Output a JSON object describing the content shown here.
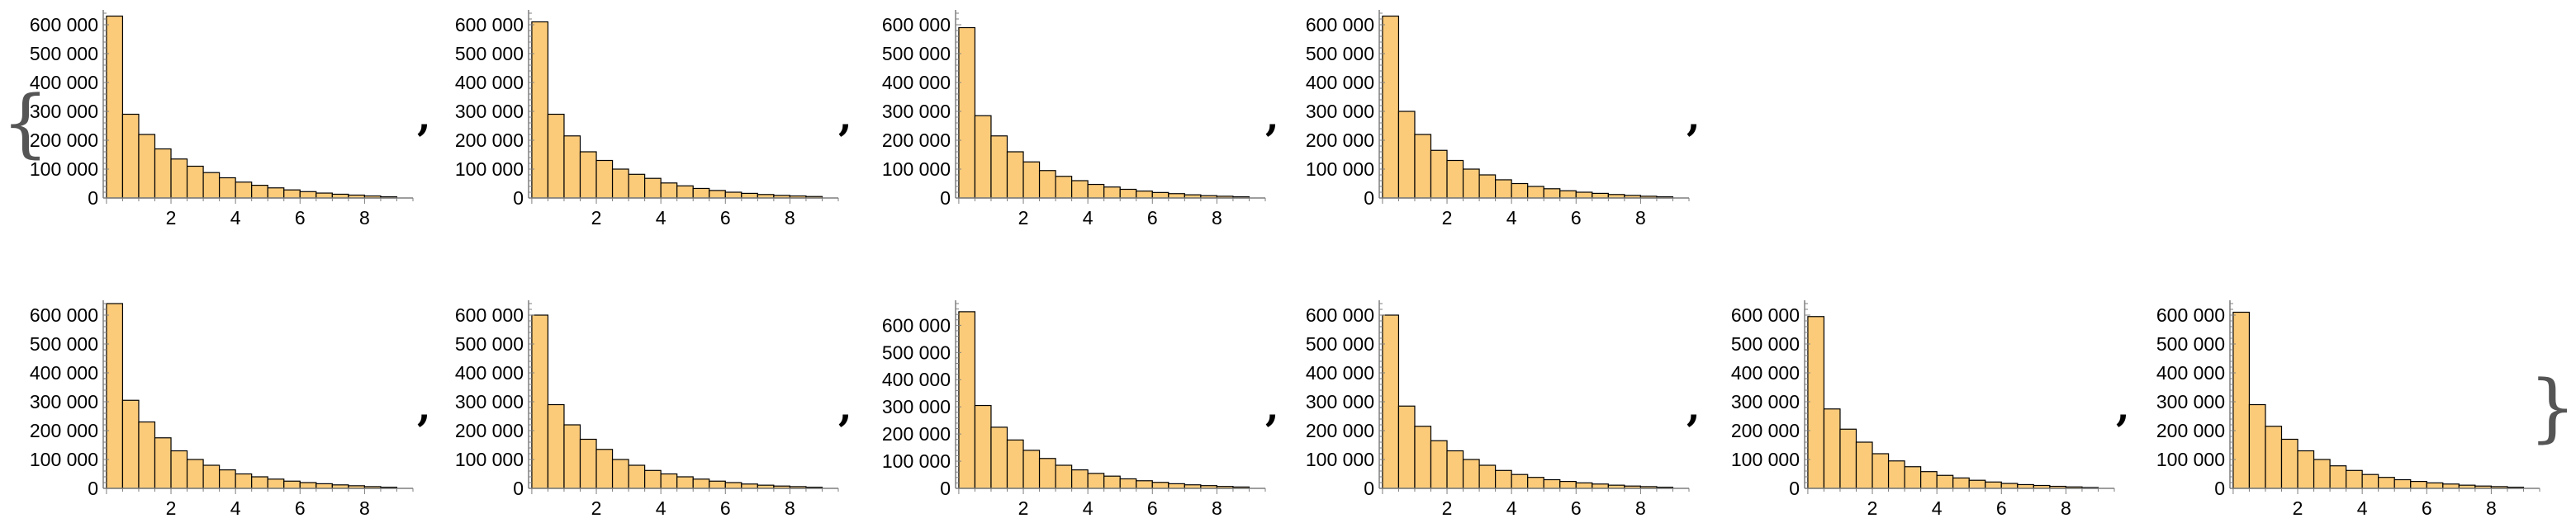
{
  "list_brackets": {
    "open": "{",
    "close": "}",
    "separator": ","
  },
  "style": {
    "bar_fill": "#FBCB7A",
    "bar_stroke": "#000000",
    "axis_color": "#7F7F7F",
    "text_color": "#000000"
  },
  "chart_data": [
    {
      "type": "bar",
      "bin_width": 0.5,
      "x_ticks": [
        2,
        4,
        6,
        8
      ],
      "x_tick_labels": [
        "2",
        "4",
        "6",
        "8"
      ],
      "y_ticks": [
        0,
        100000,
        200000,
        300000,
        400000,
        500000,
        600000
      ],
      "y_tick_labels": [
        "0",
        "100 000",
        "200 000",
        "300 000",
        "400 000",
        "500 000",
        "600 000"
      ],
      "ylim": [
        0,
        640000
      ],
      "xlim": [
        -0.1,
        9.5
      ],
      "values": [
        630000,
        290000,
        220000,
        170000,
        135000,
        110000,
        88000,
        70000,
        55000,
        44000,
        35000,
        28000,
        22000,
        17000,
        13000,
        10000,
        7000,
        4000
      ]
    },
    {
      "type": "bar",
      "bin_width": 0.5,
      "x_ticks": [
        2,
        4,
        6,
        8
      ],
      "x_tick_labels": [
        "2",
        "4",
        "6",
        "8"
      ],
      "y_ticks": [
        0,
        100000,
        200000,
        300000,
        400000,
        500000,
        600000
      ],
      "y_tick_labels": [
        "0",
        "100 000",
        "200 000",
        "300 000",
        "400 000",
        "500 000",
        "600 000"
      ],
      "ylim": [
        0,
        640000
      ],
      "xlim": [
        -0.1,
        9.5
      ],
      "values": [
        610000,
        290000,
        215000,
        160000,
        130000,
        100000,
        82000,
        68000,
        52000,
        42000,
        33000,
        26000,
        20000,
        16000,
        12000,
        9000,
        7000,
        5000
      ]
    },
    {
      "type": "bar",
      "bin_width": 0.5,
      "x_ticks": [
        2,
        4,
        6,
        8
      ],
      "x_tick_labels": [
        "2",
        "4",
        "6",
        "8"
      ],
      "y_ticks": [
        0,
        100000,
        200000,
        300000,
        400000,
        500000,
        600000
      ],
      "y_tick_labels": [
        "0",
        "100 000",
        "200 000",
        "300 000",
        "400 000",
        "500 000",
        "600 000"
      ],
      "ylim": [
        0,
        640000
      ],
      "xlim": [
        -0.1,
        9.5
      ],
      "values": [
        590000,
        285000,
        215000,
        160000,
        125000,
        95000,
        75000,
        60000,
        47000,
        38000,
        30000,
        24000,
        19000,
        15000,
        11000,
        8000,
        6000,
        4000
      ]
    },
    {
      "type": "bar",
      "bin_width": 0.5,
      "x_ticks": [
        2,
        4,
        6,
        8
      ],
      "x_tick_labels": [
        "2",
        "4",
        "6",
        "8"
      ],
      "y_ticks": [
        0,
        100000,
        200000,
        300000,
        400000,
        500000,
        600000
      ],
      "y_tick_labels": [
        "0",
        "100 000",
        "200 000",
        "300 000",
        "400 000",
        "500 000",
        "600 000"
      ],
      "ylim": [
        0,
        640000
      ],
      "xlim": [
        -0.1,
        9.5
      ],
      "values": [
        630000,
        300000,
        220000,
        165000,
        130000,
        100000,
        80000,
        63000,
        50000,
        40000,
        32000,
        25000,
        20000,
        16000,
        12000,
        9000,
        6000,
        4000
      ]
    },
    {
      "type": "bar",
      "bin_width": 0.5,
      "x_ticks": [
        2,
        4,
        6,
        8
      ],
      "x_tick_labels": [
        "2",
        "4",
        "6",
        "8"
      ],
      "y_ticks": [
        0,
        100000,
        200000,
        300000,
        400000,
        500000,
        600000
      ],
      "y_tick_labels": [
        "0",
        "100 000",
        "200 000",
        "300 000",
        "400 000",
        "500 000",
        "600 000"
      ],
      "ylim": [
        0,
        640000
      ],
      "xlim": [
        -0.1,
        9.5
      ],
      "values": [
        640000,
        305000,
        230000,
        175000,
        130000,
        100000,
        80000,
        64000,
        50000,
        40000,
        32000,
        25000,
        20000,
        16000,
        12000,
        9000,
        6000,
        4000
      ]
    },
    {
      "type": "bar",
      "bin_width": 0.5,
      "x_ticks": [
        2,
        4,
        6,
        8
      ],
      "x_tick_labels": [
        "2",
        "4",
        "6",
        "8"
      ],
      "y_ticks": [
        0,
        100000,
        200000,
        300000,
        400000,
        500000,
        600000
      ],
      "y_tick_labels": [
        "0",
        "100 000",
        "200 000",
        "300 000",
        "400 000",
        "500 000",
        "600 000"
      ],
      "ylim": [
        0,
        640000
      ],
      "xlim": [
        -0.1,
        9.5
      ],
      "values": [
        600000,
        290000,
        220000,
        170000,
        135000,
        100000,
        80000,
        62000,
        50000,
        40000,
        32000,
        25000,
        20000,
        15000,
        11000,
        8000,
        6000,
        4000
      ]
    },
    {
      "type": "bar",
      "bin_width": 0.5,
      "x_ticks": [
        2,
        4,
        6,
        8
      ],
      "x_tick_labels": [
        "2",
        "4",
        "6",
        "8"
      ],
      "y_ticks": [
        0,
        100000,
        200000,
        300000,
        400000,
        500000,
        600000
      ],
      "y_tick_labels": [
        "0",
        "100 000",
        "200 000",
        "300 000",
        "400 000",
        "500 000",
        "600 000"
      ],
      "ylim": [
        0,
        680000
      ],
      "xlim": [
        -0.1,
        9.5
      ],
      "values": [
        650000,
        305000,
        225000,
        178000,
        140000,
        110000,
        85000,
        68000,
        55000,
        45000,
        35000,
        28000,
        22000,
        17000,
        13000,
        10000,
        7000,
        5000
      ]
    },
    {
      "type": "bar",
      "bin_width": 0.5,
      "x_ticks": [
        2,
        4,
        6,
        8
      ],
      "x_tick_labels": [
        "2",
        "4",
        "6",
        "8"
      ],
      "y_ticks": [
        0,
        100000,
        200000,
        300000,
        400000,
        500000,
        600000
      ],
      "y_tick_labels": [
        "0",
        "100 000",
        "200 000",
        "300 000",
        "400 000",
        "500 000",
        "600 000"
      ],
      "ylim": [
        0,
        640000
      ],
      "xlim": [
        -0.1,
        9.5
      ],
      "values": [
        600000,
        285000,
        215000,
        165000,
        130000,
        100000,
        80000,
        62000,
        48000,
        38000,
        30000,
        24000,
        19000,
        15000,
        11000,
        8000,
        6000,
        4000
      ]
    },
    {
      "type": "bar",
      "bin_width": 0.5,
      "x_ticks": [
        2,
        4,
        6,
        8
      ],
      "x_tick_labels": [
        "2",
        "4",
        "6",
        "8"
      ],
      "y_ticks": [
        0,
        100000,
        200000,
        300000,
        400000,
        500000,
        600000
      ],
      "y_tick_labels": [
        "0",
        "100 000",
        "200 000",
        "300 000",
        "400 000",
        "500 000",
        "600 000"
      ],
      "ylim": [
        0,
        640000
      ],
      "xlim": [
        -0.1,
        9.5
      ],
      "values": [
        595000,
        275000,
        205000,
        160000,
        120000,
        95000,
        75000,
        58000,
        45000,
        36000,
        28000,
        22000,
        17000,
        13000,
        10000,
        7000,
        5000,
        3000
      ]
    },
    {
      "type": "bar",
      "bin_width": 0.5,
      "x_ticks": [
        2,
        4,
        6,
        8
      ],
      "x_tick_labels": [
        "2",
        "4",
        "6",
        "8"
      ],
      "y_ticks": [
        0,
        100000,
        200000,
        300000,
        400000,
        500000,
        600000
      ],
      "y_tick_labels": [
        "0",
        "100 000",
        "200 000",
        "300 000",
        "400 000",
        "500 000",
        "600 000"
      ],
      "ylim": [
        0,
        640000
      ],
      "xlim": [
        -0.1,
        9.5
      ],
      "values": [
        610000,
        290000,
        215000,
        170000,
        130000,
        100000,
        78000,
        62000,
        48000,
        38000,
        30000,
        24000,
        19000,
        15000,
        11000,
        8000,
        6000,
        4000
      ]
    }
  ]
}
